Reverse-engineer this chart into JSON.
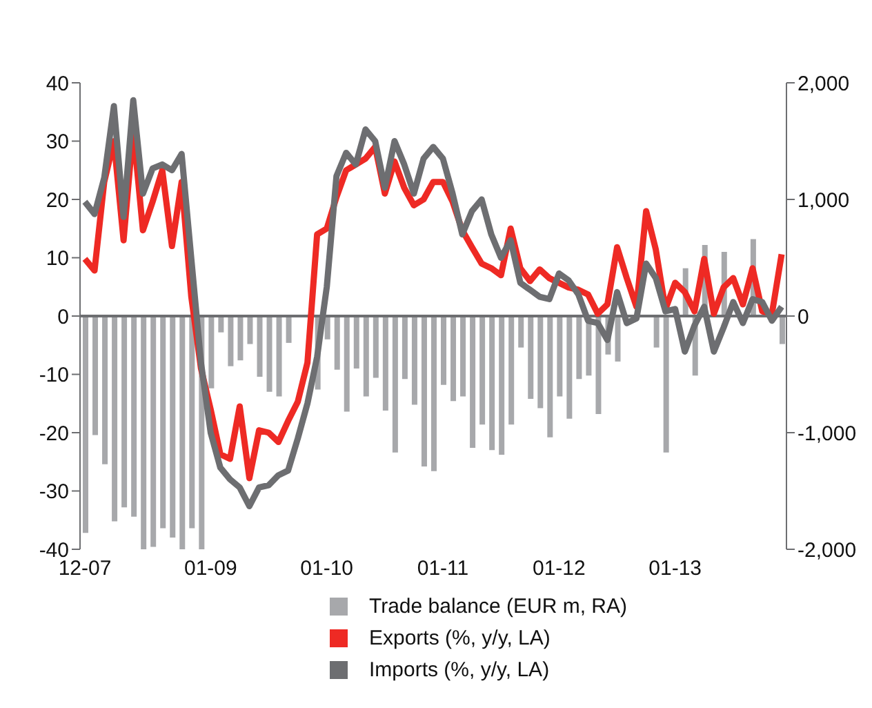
{
  "chart_data": {
    "type": "bar",
    "categories": [
      "12-07",
      null,
      null,
      null,
      null,
      null,
      null,
      null,
      null,
      null,
      null,
      null,
      null,
      "01-09",
      null,
      null,
      null,
      null,
      null,
      null,
      null,
      null,
      null,
      null,
      null,
      "01-10",
      null,
      null,
      null,
      null,
      null,
      null,
      null,
      null,
      null,
      null,
      null,
      "01-11",
      null,
      null,
      null,
      null,
      null,
      null,
      null,
      null,
      null,
      null,
      null,
      "01-12",
      null,
      null,
      null,
      null,
      null,
      null,
      null,
      null,
      null,
      null,
      null,
      "01-13",
      null,
      null,
      null,
      null,
      null,
      null,
      null,
      null,
      null,
      null,
      null
    ],
    "series": [
      {
        "name": "Trade balance (EUR m, RA)",
        "axis": "y2",
        "color": "#a7a8ab",
        "values": [
          -1860,
          -1020,
          -1270,
          -1760,
          -1640,
          -1720,
          -2000,
          -1980,
          -1820,
          -1900,
          -2000,
          -1820,
          -2000,
          -620,
          -140,
          -430,
          -380,
          -240,
          -520,
          -650,
          -690,
          -230,
          null,
          null,
          -630,
          -200,
          -460,
          -820,
          -450,
          -690,
          -530,
          -810,
          -1170,
          -540,
          -760,
          -1290,
          -1330,
          -590,
          -730,
          -690,
          -1130,
          -930,
          -1150,
          -1190,
          -930,
          -270,
          -710,
          -790,
          -1040,
          -690,
          -880,
          -540,
          -510,
          -840,
          -330,
          -390,
          null,
          null,
          null,
          -270,
          -1170,
          null,
          410,
          -510,
          610,
          null,
          550,
          null,
          null,
          660,
          null,
          null,
          -240
        ]
      },
      {
        "name": "Exports (%, y/y, LA)",
        "type": "line",
        "color": "#ee2a24",
        "values": [
          9.8,
          7.8,
          23,
          30,
          13,
          32,
          14.7,
          19.6,
          25,
          12,
          23,
          3.3,
          -9,
          -16,
          -23.7,
          -24.5,
          -15.5,
          -27.8,
          -19.6,
          -20,
          -21.6,
          -18,
          -14.7,
          -8,
          14,
          15,
          20.4,
          25,
          26,
          27,
          29,
          21,
          26.5,
          22,
          19,
          20,
          23,
          23,
          19.6,
          14.7,
          11.8,
          9,
          8.2,
          7,
          15,
          8.2,
          6,
          8,
          6.5,
          5.7,
          4.9,
          4.5,
          3.7,
          0.4,
          2,
          11.8,
          6.5,
          1.6,
          18,
          11.4,
          1.2,
          5.7,
          4.1,
          0.8,
          9.8,
          0.4,
          4.9,
          6.5,
          2,
          8.2,
          0.8,
          0.4,
          10.6
        ]
      },
      {
        "name": "Imports (%, y/y, LA)",
        "type": "line",
        "color": "#6d6e71",
        "values": [
          19.6,
          17.5,
          23.7,
          36,
          17,
          37,
          21,
          25.3,
          26,
          25,
          27.8,
          9.8,
          -8,
          -20,
          -26,
          -28,
          -29.4,
          -32.6,
          -29.4,
          -29,
          -27.3,
          -26.5,
          -21,
          -15,
          -7,
          5,
          24,
          28,
          26,
          32,
          30,
          22,
          30,
          26,
          21,
          27,
          29,
          27,
          21,
          14,
          18,
          20,
          14,
          10,
          13,
          5.7,
          4.5,
          3.3,
          2.9,
          7.3,
          6.1,
          3.7,
          -0.8,
          -1.2,
          -4.1,
          4.1,
          -1.2,
          -0.4,
          9,
          6.5,
          0.8,
          1.2,
          -6.1,
          -1.6,
          1.6,
          -6.1,
          -2,
          2.4,
          -1.2,
          2.9,
          2.4,
          -0.8,
          1.6
        ]
      }
    ],
    "ylim": [
      -40,
      40
    ],
    "yticks": [
      -40,
      -30,
      -20,
      -10,
      0,
      10,
      20,
      30,
      40
    ],
    "y2lim": [
      -2000,
      2000
    ],
    "y2ticks": [
      {
        "value": -2000,
        "label": "-2,000"
      },
      {
        "value": -1000,
        "label": "-1,000"
      },
      0,
      {
        "value": 1000,
        "label": "1,000"
      },
      {
        "value": 2000,
        "label": "2,000"
      }
    ],
    "ref_lines": [
      {
        "axis": "y",
        "value": 0,
        "color": "#6d6e71"
      }
    ],
    "grid": false,
    "legend": "bottom"
  }
}
